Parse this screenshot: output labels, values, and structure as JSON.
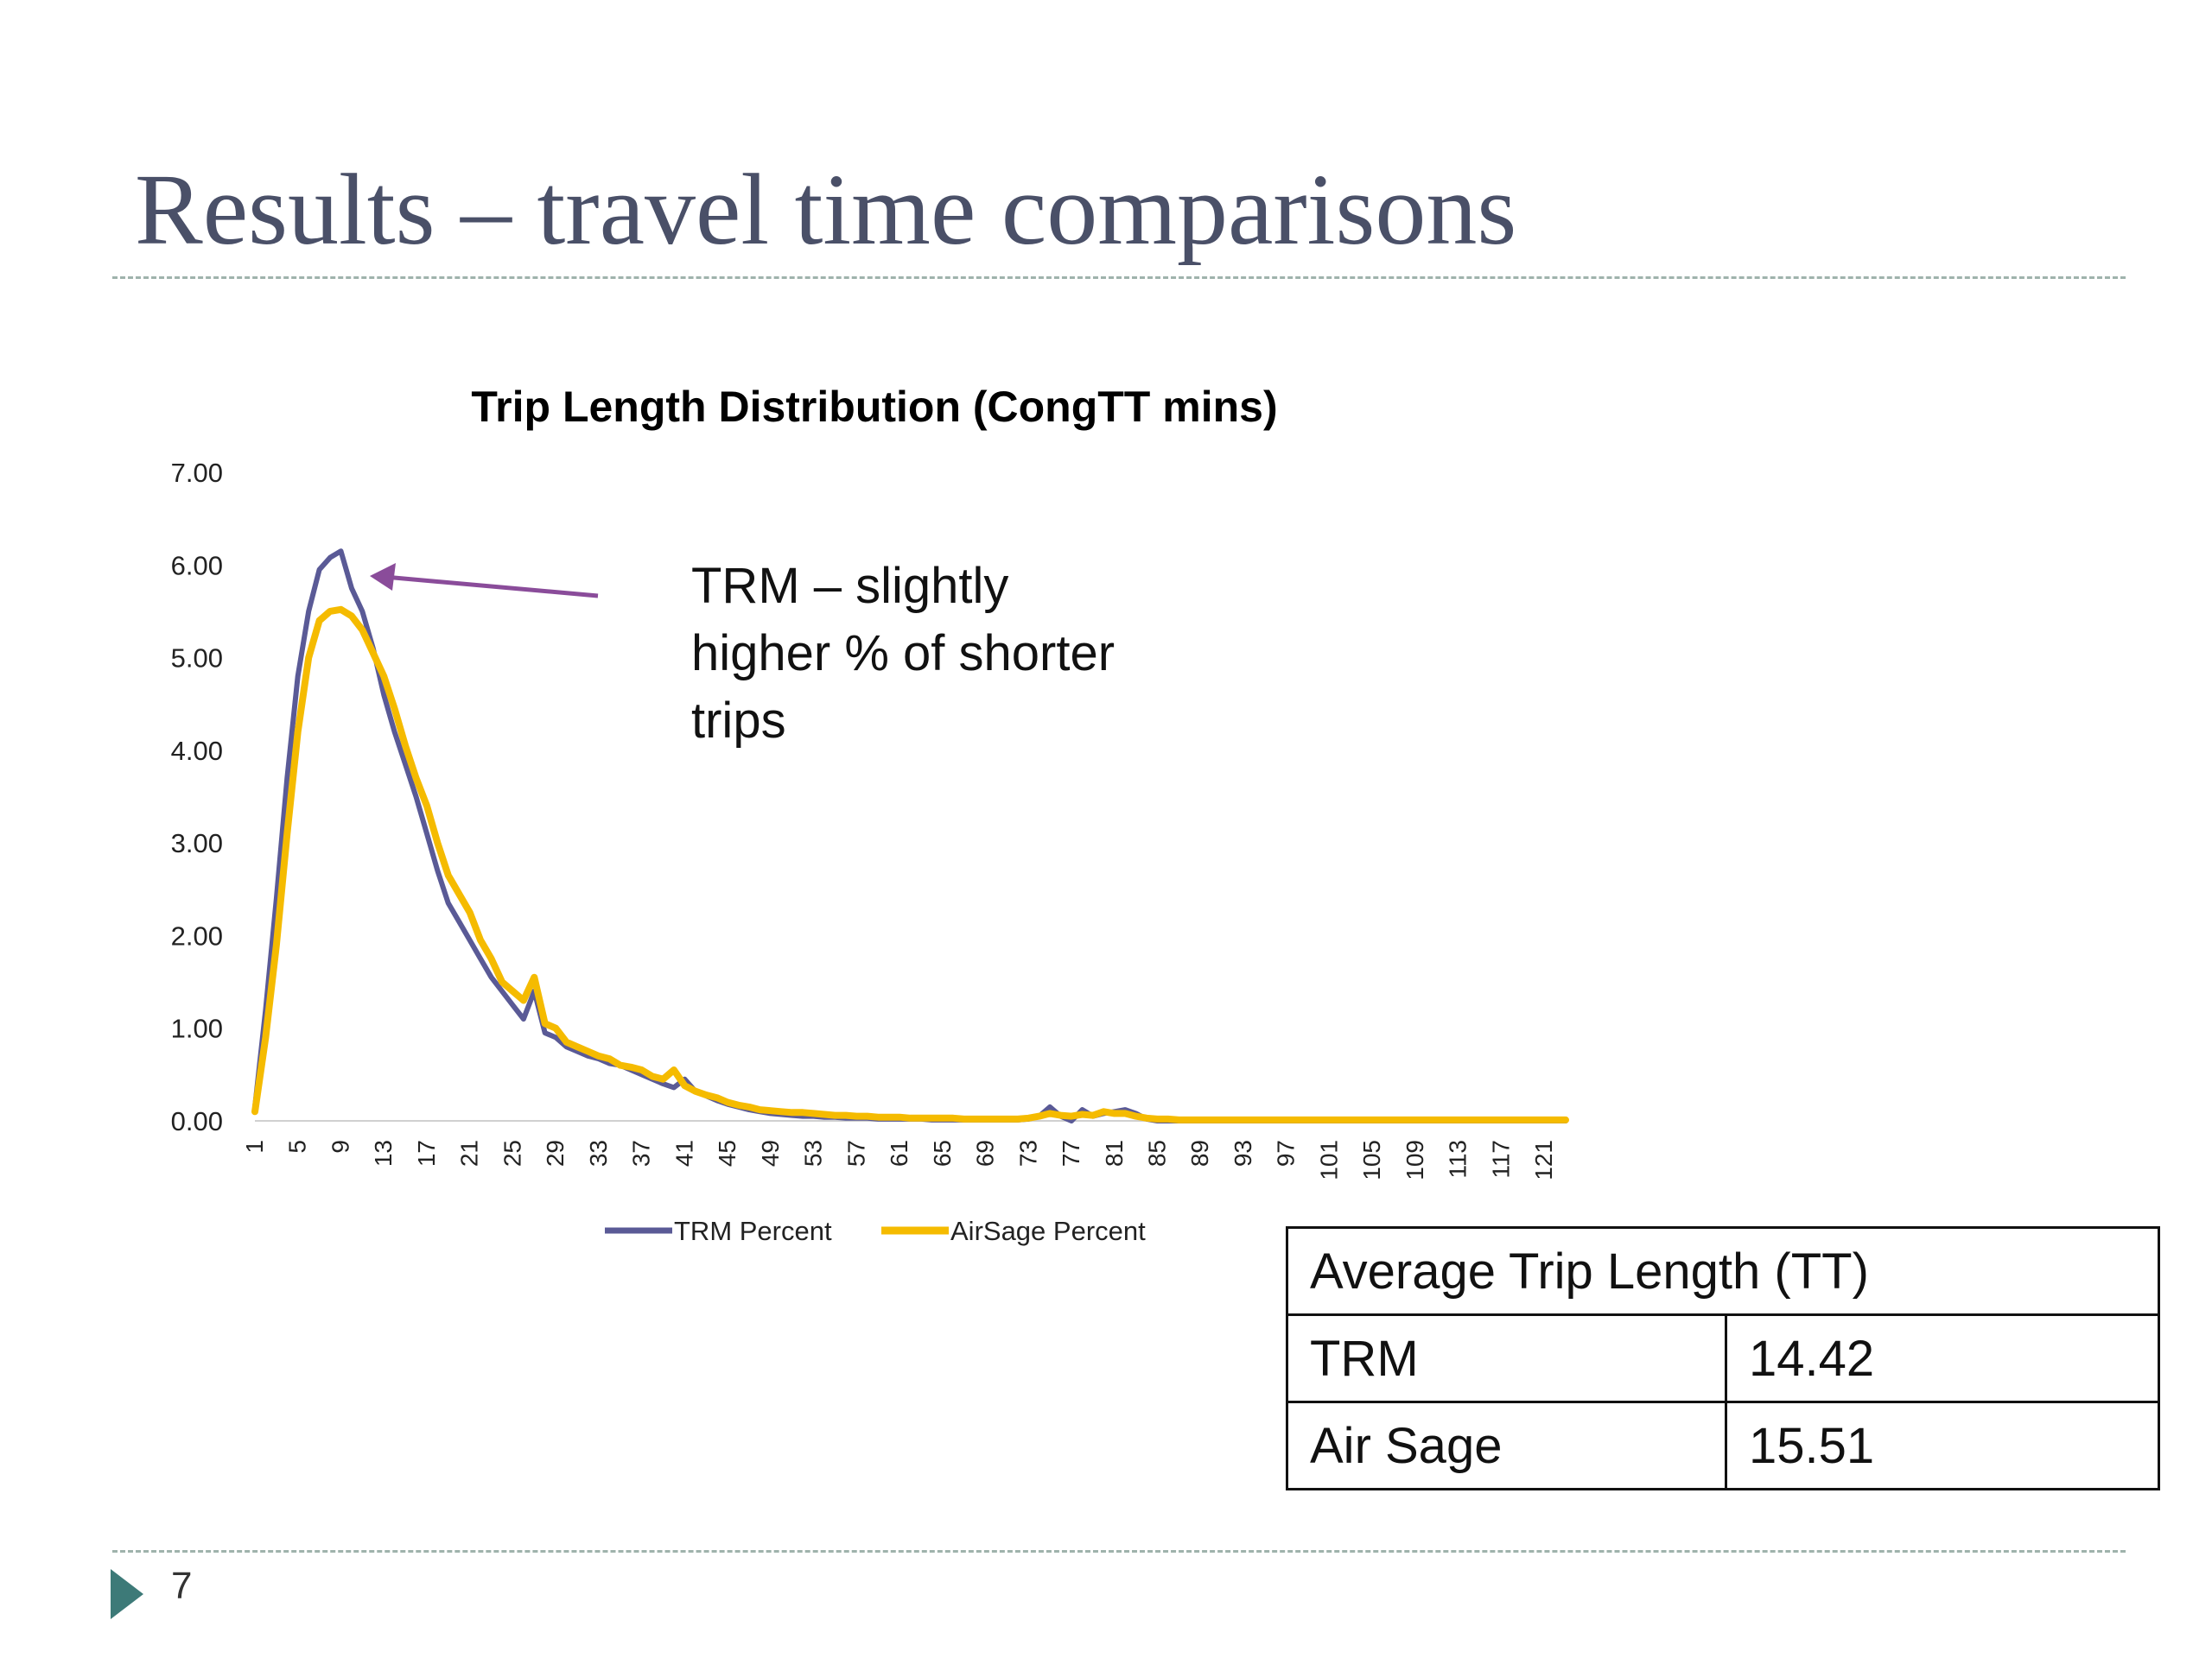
{
  "slide": {
    "title": "Results – travel time comparisons",
    "page_number": "7"
  },
  "annotation": {
    "lines": [
      "TRM – slightly",
      "higher % of shorter",
      "trips"
    ]
  },
  "table": {
    "header": "Average Trip Length (TT)",
    "rows": [
      {
        "label": "TRM",
        "value": "14.42"
      },
      {
        "label": "Air Sage",
        "value": "15.51"
      }
    ]
  },
  "colors": {
    "trm": "#5a5a96",
    "airsage": "#f5bb00",
    "arrow": "#8a4c9a"
  },
  "chart_data": {
    "type": "line",
    "title": "Trip Length Distribution (CongTT mins)",
    "xlabel": "",
    "ylabel": "",
    "ylim": [
      0,
      7
    ],
    "yticks": [
      "0.00",
      "1.00",
      "2.00",
      "3.00",
      "4.00",
      "5.00",
      "6.00",
      "7.00"
    ],
    "x_start": 1,
    "x_end": 123,
    "xtick_labels": [
      "1",
      "5",
      "9",
      "13",
      "17",
      "21",
      "25",
      "29",
      "33",
      "37",
      "41",
      "45",
      "49",
      "53",
      "57",
      "61",
      "65",
      "69",
      "73",
      "77",
      "81",
      "85",
      "89",
      "93",
      "97",
      "101",
      "105",
      "109",
      "113",
      "117",
      "121"
    ],
    "legend": "bottom",
    "grid": false,
    "series": [
      {
        "name": "TRM Percent",
        "color": "#5a5a96",
        "points": [
          [
            1,
            0.15
          ],
          [
            2,
            1.2
          ],
          [
            3,
            2.4
          ],
          [
            4,
            3.7
          ],
          [
            5,
            4.8
          ],
          [
            6,
            5.5
          ],
          [
            7,
            5.95
          ],
          [
            8,
            6.08
          ],
          [
            9,
            6.15
          ],
          [
            10,
            5.75
          ],
          [
            11,
            5.5
          ],
          [
            12,
            5.1
          ],
          [
            13,
            4.6
          ],
          [
            14,
            4.2
          ],
          [
            15,
            3.85
          ],
          [
            16,
            3.5
          ],
          [
            17,
            3.1
          ],
          [
            18,
            2.7
          ],
          [
            19,
            2.35
          ],
          [
            20,
            2.15
          ],
          [
            21,
            1.95
          ],
          [
            22,
            1.75
          ],
          [
            23,
            1.55
          ],
          [
            24,
            1.4
          ],
          [
            25,
            1.25
          ],
          [
            26,
            1.1
          ],
          [
            27,
            1.4
          ],
          [
            28,
            0.95
          ],
          [
            29,
            0.9
          ],
          [
            30,
            0.8
          ],
          [
            31,
            0.75
          ],
          [
            32,
            0.7
          ],
          [
            33,
            0.67
          ],
          [
            34,
            0.62
          ],
          [
            35,
            0.6
          ],
          [
            36,
            0.55
          ],
          [
            37,
            0.5
          ],
          [
            38,
            0.45
          ],
          [
            39,
            0.4
          ],
          [
            40,
            0.36
          ],
          [
            41,
            0.45
          ],
          [
            42,
            0.32
          ],
          [
            43,
            0.27
          ],
          [
            44,
            0.22
          ],
          [
            45,
            0.18
          ],
          [
            46,
            0.15
          ],
          [
            47,
            0.12
          ],
          [
            48,
            0.1
          ],
          [
            49,
            0.08
          ],
          [
            50,
            0.07
          ],
          [
            51,
            0.06
          ],
          [
            52,
            0.05
          ],
          [
            53,
            0.05
          ],
          [
            54,
            0.04
          ],
          [
            55,
            0.04
          ],
          [
            56,
            0.03
          ],
          [
            57,
            0.03
          ],
          [
            58,
            0.03
          ],
          [
            59,
            0.02
          ],
          [
            60,
            0.02
          ],
          [
            61,
            0.02
          ],
          [
            62,
            0.02
          ],
          [
            63,
            0.02
          ],
          [
            64,
            0.01
          ],
          [
            65,
            0.01
          ],
          [
            66,
            0.01
          ],
          [
            67,
            0.01
          ],
          [
            68,
            0.01
          ],
          [
            69,
            0.01
          ],
          [
            70,
            0.01
          ],
          [
            71,
            0.01
          ],
          [
            72,
            0.01
          ],
          [
            73,
            0.02
          ],
          [
            74,
            0.05
          ],
          [
            75,
            0.15
          ],
          [
            76,
            0.05
          ],
          [
            77,
            0.0
          ],
          [
            78,
            0.12
          ],
          [
            79,
            0.05
          ],
          [
            80,
            0.08
          ],
          [
            81,
            0.1
          ],
          [
            82,
            0.12
          ],
          [
            83,
            0.08
          ],
          [
            84,
            0.02
          ],
          [
            85,
            0.0
          ],
          [
            86,
            0.0
          ],
          [
            87,
            0.0
          ],
          [
            88,
            0.0
          ],
          [
            89,
            0.0
          ],
          [
            90,
            0.0
          ],
          [
            91,
            0.0
          ],
          [
            92,
            0.0
          ],
          [
            93,
            0.0
          ],
          [
            94,
            0.0
          ],
          [
            95,
            0.0
          ],
          [
            96,
            0.0
          ],
          [
            97,
            0.0
          ],
          [
            98,
            0.0
          ],
          [
            99,
            0.0
          ],
          [
            100,
            0.0
          ],
          [
            101,
            0.0
          ],
          [
            102,
            0.0
          ],
          [
            103,
            0.0
          ],
          [
            104,
            0.0
          ],
          [
            105,
            0.0
          ],
          [
            106,
            0.0
          ],
          [
            107,
            0.0
          ],
          [
            108,
            0.0
          ],
          [
            109,
            0.0
          ],
          [
            110,
            0.0
          ],
          [
            111,
            0.0
          ],
          [
            112,
            0.0
          ],
          [
            113,
            0.0
          ],
          [
            114,
            0.0
          ],
          [
            115,
            0.0
          ],
          [
            116,
            0.0
          ],
          [
            117,
            0.0
          ],
          [
            118,
            0.0
          ],
          [
            119,
            0.0
          ],
          [
            120,
            0.0
          ],
          [
            121,
            0.0
          ],
          [
            122,
            0.0
          ],
          [
            123,
            0.0
          ]
        ]
      },
      {
        "name": "AirSage Percent",
        "color": "#f5bb00",
        "points": [
          [
            1,
            0.1
          ],
          [
            2,
            0.9
          ],
          [
            3,
            1.9
          ],
          [
            4,
            3.1
          ],
          [
            5,
            4.2
          ],
          [
            6,
            5.0
          ],
          [
            7,
            5.4
          ],
          [
            8,
            5.5
          ],
          [
            9,
            5.52
          ],
          [
            10,
            5.45
          ],
          [
            11,
            5.3
          ],
          [
            12,
            5.05
          ],
          [
            13,
            4.8
          ],
          [
            14,
            4.45
          ],
          [
            15,
            4.05
          ],
          [
            16,
            3.7
          ],
          [
            17,
            3.4
          ],
          [
            18,
            3.0
          ],
          [
            19,
            2.65
          ],
          [
            20,
            2.45
          ],
          [
            21,
            2.25
          ],
          [
            22,
            1.95
          ],
          [
            23,
            1.75
          ],
          [
            24,
            1.5
          ],
          [
            25,
            1.4
          ],
          [
            26,
            1.3
          ],
          [
            27,
            1.55
          ],
          [
            28,
            1.05
          ],
          [
            29,
            1.0
          ],
          [
            30,
            0.85
          ],
          [
            31,
            0.8
          ],
          [
            32,
            0.75
          ],
          [
            33,
            0.7
          ],
          [
            34,
            0.67
          ],
          [
            35,
            0.6
          ],
          [
            36,
            0.58
          ],
          [
            37,
            0.55
          ],
          [
            38,
            0.48
          ],
          [
            39,
            0.45
          ],
          [
            40,
            0.55
          ],
          [
            41,
            0.38
          ],
          [
            42,
            0.32
          ],
          [
            43,
            0.28
          ],
          [
            44,
            0.25
          ],
          [
            45,
            0.2
          ],
          [
            46,
            0.17
          ],
          [
            47,
            0.15
          ],
          [
            48,
            0.12
          ],
          [
            49,
            0.11
          ],
          [
            50,
            0.1
          ],
          [
            51,
            0.09
          ],
          [
            52,
            0.09
          ],
          [
            53,
            0.08
          ],
          [
            54,
            0.07
          ],
          [
            55,
            0.06
          ],
          [
            56,
            0.06
          ],
          [
            57,
            0.05
          ],
          [
            58,
            0.05
          ],
          [
            59,
            0.04
          ],
          [
            60,
            0.04
          ],
          [
            61,
            0.04
          ],
          [
            62,
            0.03
          ],
          [
            63,
            0.03
          ],
          [
            64,
            0.03
          ],
          [
            65,
            0.03
          ],
          [
            66,
            0.03
          ],
          [
            67,
            0.02
          ],
          [
            68,
            0.02
          ],
          [
            69,
            0.02
          ],
          [
            70,
            0.02
          ],
          [
            71,
            0.02
          ],
          [
            72,
            0.02
          ],
          [
            73,
            0.03
          ],
          [
            74,
            0.05
          ],
          [
            75,
            0.08
          ],
          [
            76,
            0.06
          ],
          [
            77,
            0.05
          ],
          [
            78,
            0.07
          ],
          [
            79,
            0.06
          ],
          [
            80,
            0.1
          ],
          [
            81,
            0.08
          ],
          [
            82,
            0.08
          ],
          [
            83,
            0.05
          ],
          [
            84,
            0.03
          ],
          [
            85,
            0.02
          ],
          [
            86,
            0.02
          ],
          [
            87,
            0.01
          ],
          [
            88,
            0.01
          ],
          [
            89,
            0.01
          ],
          [
            90,
            0.01
          ],
          [
            91,
            0.01
          ],
          [
            92,
            0.01
          ],
          [
            93,
            0.01
          ],
          [
            94,
            0.01
          ],
          [
            95,
            0.01
          ],
          [
            96,
            0.01
          ],
          [
            97,
            0.01
          ],
          [
            98,
            0.01
          ],
          [
            99,
            0.01
          ],
          [
            100,
            0.01
          ],
          [
            101,
            0.01
          ],
          [
            102,
            0.01
          ],
          [
            103,
            0.01
          ],
          [
            104,
            0.01
          ],
          [
            105,
            0.01
          ],
          [
            106,
            0.01
          ],
          [
            107,
            0.01
          ],
          [
            108,
            0.01
          ],
          [
            109,
            0.01
          ],
          [
            110,
            0.01
          ],
          [
            111,
            0.01
          ],
          [
            112,
            0.01
          ],
          [
            113,
            0.01
          ],
          [
            114,
            0.01
          ],
          [
            115,
            0.01
          ],
          [
            116,
            0.01
          ],
          [
            117,
            0.01
          ],
          [
            118,
            0.01
          ],
          [
            119,
            0.01
          ],
          [
            120,
            0.01
          ],
          [
            121,
            0.01
          ],
          [
            122,
            0.01
          ],
          [
            123,
            0.01
          ]
        ]
      }
    ]
  }
}
